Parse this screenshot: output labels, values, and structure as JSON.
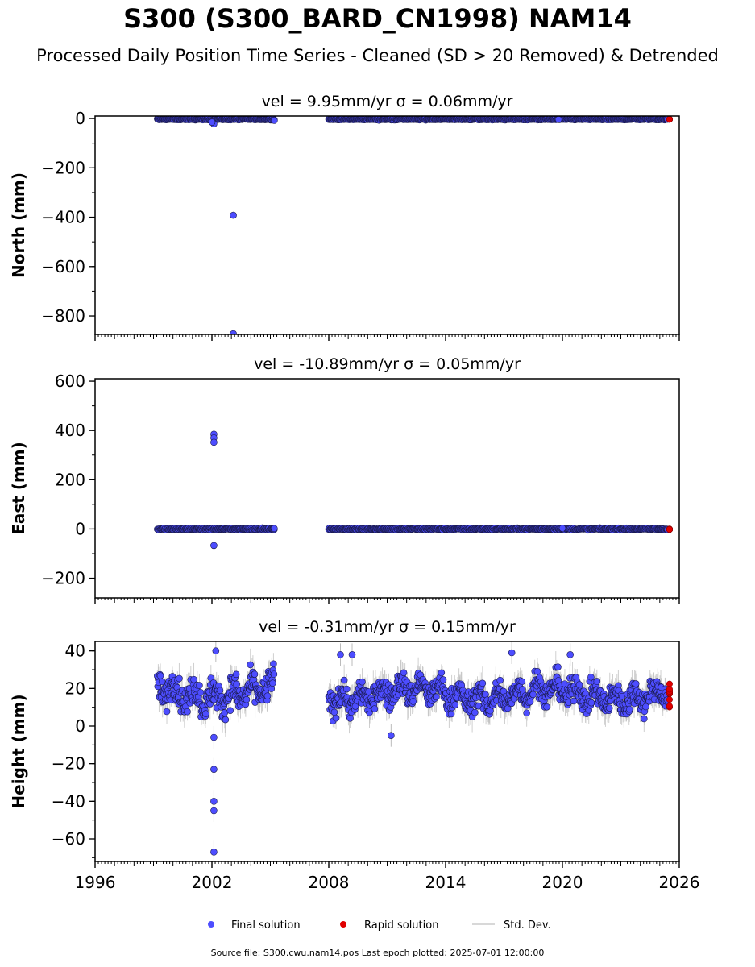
{
  "title": "S300 (S300_BARD_CN1998) NAM14",
  "subtitle": "Processed Daily Position Time Series - Cleaned (SD > 20 Removed) & Detrended",
  "chart_data": [
    {
      "type": "scatter",
      "component": "north",
      "title": "vel = 9.95mm/yr   σ = 0.06mm/yr",
      "ylabel": "North (mm)",
      "xlim": [
        1996,
        2026
      ],
      "ylim": [
        -875,
        10
      ],
      "yticks": [
        0,
        -200,
        -400,
        -600,
        -800
      ],
      "yminor": 100,
      "grid": false,
      "segments": [
        {
          "x0": 1999.2,
          "x1": 2005.2,
          "center": -3,
          "spread": 4
        },
        {
          "x0": 2008.0,
          "x1": 2025.4,
          "center": -3,
          "spread": 4
        }
      ],
      "outliers": [
        {
          "x": 2002.1,
          "y": -22
        },
        {
          "x": 2002.0,
          "y": -15
        },
        {
          "x": 2003.1,
          "y": -392
        },
        {
          "x": 2003.1,
          "y": -872
        },
        {
          "x": 2005.2,
          "y": -8
        },
        {
          "x": 2019.8,
          "y": -4
        }
      ],
      "rapid": {
        "x0": 2025.2,
        "x1": 2025.5,
        "center": -3,
        "spread": 2
      }
    },
    {
      "type": "scatter",
      "component": "east",
      "title": "vel = -10.89mm/yr   σ = 0.05mm/yr",
      "ylabel": "East (mm)",
      "xlim": [
        1996,
        2026
      ],
      "ylim": [
        -280,
        610
      ],
      "yticks": [
        600,
        400,
        200,
        0,
        -200
      ],
      "yminor": 100,
      "grid": false,
      "segments": [
        {
          "x0": 1999.2,
          "x1": 2005.2,
          "center": 0,
          "spread": 5
        },
        {
          "x0": 2008.0,
          "x1": 2025.4,
          "center": 0,
          "spread": 5
        }
      ],
      "outliers": [
        {
          "x": 2002.1,
          "y": 385
        },
        {
          "x": 2002.1,
          "y": 370
        },
        {
          "x": 2002.1,
          "y": 352
        },
        {
          "x": 2002.1,
          "y": -67
        },
        {
          "x": 2005.2,
          "y": 2
        },
        {
          "x": 2020.0,
          "y": 3
        }
      ],
      "rapid": {
        "x0": 2025.2,
        "x1": 2025.5,
        "center": -2,
        "spread": 2
      }
    },
    {
      "type": "scatter",
      "component": "height",
      "title": "vel = -0.31mm/yr   σ = 0.15mm/yr",
      "ylabel": "Height (mm)",
      "xlim": [
        1996,
        2026
      ],
      "ylim": [
        -72,
        45
      ],
      "yticks": [
        40,
        20,
        0,
        -20,
        -40,
        -60
      ],
      "yminor": 10,
      "grid": false,
      "segments": [
        {
          "x0": 1999.2,
          "x1": 2005.2,
          "center": 18,
          "spread": 9
        },
        {
          "x0": 2008.0,
          "x1": 2025.4,
          "center": 17,
          "spread": 8
        }
      ],
      "outliers": [
        {
          "x": 2002.1,
          "y": -6
        },
        {
          "x": 2002.1,
          "y": -23
        },
        {
          "x": 2002.1,
          "y": -40
        },
        {
          "x": 2002.1,
          "y": -45
        },
        {
          "x": 2002.1,
          "y": -67
        },
        {
          "x": 2002.2,
          "y": 40
        },
        {
          "x": 2008.6,
          "y": 38
        },
        {
          "x": 2009.2,
          "y": 38
        },
        {
          "x": 2011.2,
          "y": -5
        },
        {
          "x": 2017.4,
          "y": 39
        },
        {
          "x": 2020.4,
          "y": 38
        }
      ],
      "rapid": {
        "x0": 2025.2,
        "x1": 2025.5,
        "center": 17,
        "spread": 5
      },
      "xticks": [
        1996,
        2002,
        2008,
        2014,
        2020,
        2026
      ],
      "xtick_labels": [
        "1996",
        "2002",
        "2008",
        "2014",
        "2020",
        "2026"
      ]
    }
  ],
  "legend": {
    "final_label": "Final solution",
    "rapid_label": "Rapid solution",
    "std_label": "Std. Dev."
  },
  "colors": {
    "final": "#4d4dff",
    "final_edge": "#1a1a4d",
    "rapid": "#e00000",
    "std": "#bbbbbb"
  },
  "source_note": "Source file: S300.cwu.nam14.pos  Last epoch plotted: 2025-07-01 12:00:00"
}
